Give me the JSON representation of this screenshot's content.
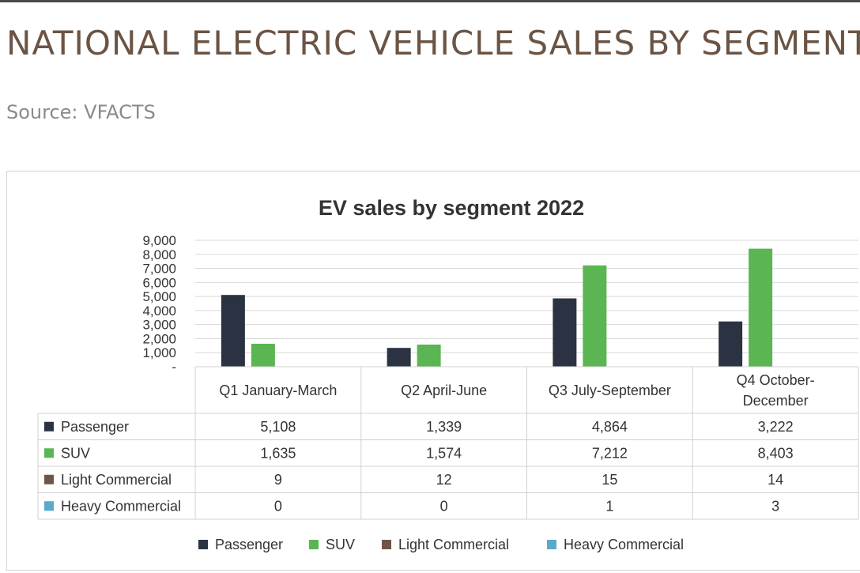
{
  "page": {
    "title": "NATIONAL ELECTRIC VEHICLE SALES BY SEGMENT",
    "source": "Source: VFACTS"
  },
  "chart_data": {
    "type": "bar",
    "title": "EV sales by segment 2022",
    "categories": [
      "Q1 January-March",
      "Q2 April-June",
      "Q3 July-September",
      "Q4 October-December"
    ],
    "category_lines": [
      [
        "Q1 January-March"
      ],
      [
        "Q2 April-June"
      ],
      [
        "Q3 July-September"
      ],
      [
        "Q4 October-",
        "December"
      ]
    ],
    "series": [
      {
        "name": "Passenger",
        "values": [
          5108,
          1339,
          4864,
          3222
        ],
        "labels": [
          "5,108",
          "1,339",
          "4,864",
          "3,222"
        ],
        "color": "#2b3342"
      },
      {
        "name": "SUV",
        "values": [
          1635,
          1574,
          7212,
          8403
        ],
        "labels": [
          "1,635",
          "1,574",
          "7,212",
          "8,403"
        ],
        "color": "#5ab552"
      },
      {
        "name": "Light Commercial",
        "values": [
          9,
          12,
          15,
          14
        ],
        "labels": [
          "9",
          "12",
          "15",
          "14"
        ],
        "color": "#6e5548"
      },
      {
        "name": "Heavy Commercial",
        "values": [
          0,
          0,
          1,
          3
        ],
        "labels": [
          "0",
          "0",
          "1",
          "3"
        ],
        "color": "#5aa9c9"
      }
    ],
    "ylim": [
      0,
      9000
    ],
    "yticks": [
      0,
      1000,
      2000,
      3000,
      4000,
      5000,
      6000,
      7000,
      8000,
      9000
    ],
    "ytick_labels": [
      "-",
      "1,000",
      "2,000",
      "3,000",
      "4,000",
      "5,000",
      "6,000",
      "7,000",
      "8,000",
      "9,000"
    ],
    "grid": true,
    "legend_position": "bottom",
    "data_table": true
  }
}
